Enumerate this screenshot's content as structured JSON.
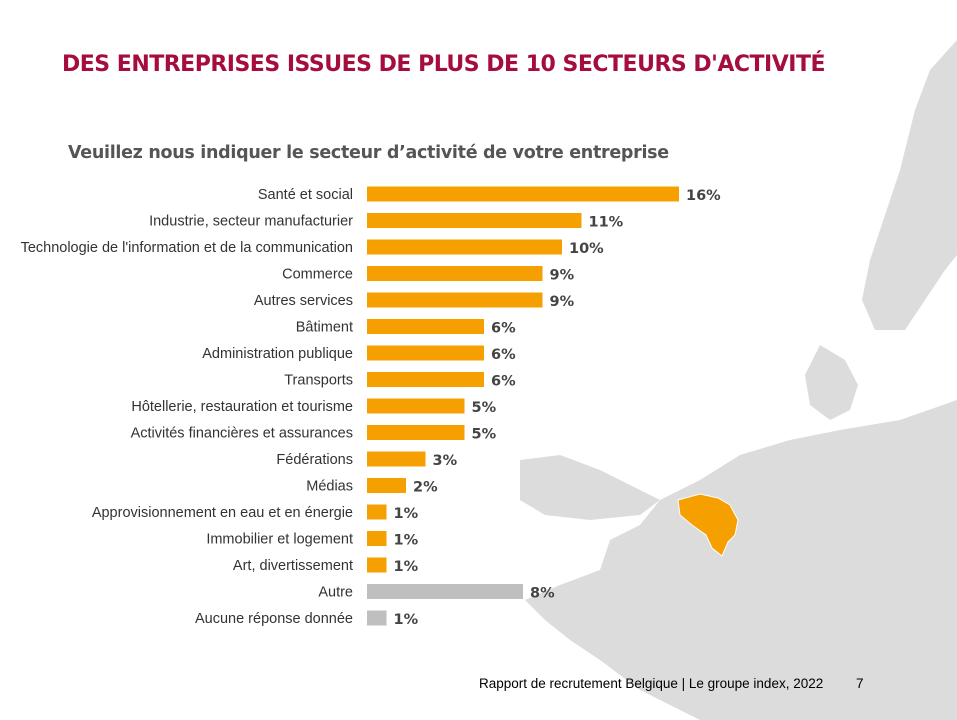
{
  "title": "DES ENTREPRISES ISSUES DE PLUS DE 10 SECTEURS D'ACTIVITÉ",
  "footer": {
    "text": "Rapport de recrutement Belgique | Le groupe index, 2022",
    "page": "7"
  },
  "colors": {
    "title": "#a50d3c",
    "bar_primary": "#f5a000",
    "bar_other": "#bfbfbf",
    "map_land": "#dcdcdc",
    "map_highlight": "#f5a000"
  },
  "chart_data": {
    "type": "bar",
    "orientation": "horizontal",
    "title": "Veuillez nous indiquer le secteur d’activité de votre entreprise",
    "unit": "%",
    "categories": [
      "Santé et social",
      "Industrie, secteur manufacturier",
      "Technologie de l'information et de la communication",
      "Commerce",
      "Autres services",
      "Bâtiment",
      "Administration publique",
      "Transports",
      "Hôtellerie, restauration et tourisme",
      "Activités financières et assurances",
      "Fédérations",
      "Médias",
      "Approvisionnement en eau et en énergie",
      "Immobilier et logement",
      "Art, divertissement",
      "Autre",
      "Aucune réponse donnée"
    ],
    "values": [
      16,
      11,
      10,
      9,
      9,
      6,
      6,
      6,
      5,
      5,
      3,
      2,
      1,
      1,
      1,
      8,
      1
    ],
    "labels": [
      "16%",
      "11%",
      "10%",
      "9%",
      "9%",
      "6%",
      "6%",
      "6%",
      "5%",
      "5%",
      "3%",
      "2%",
      "1%",
      "1%",
      "1%",
      "8%",
      "1%"
    ],
    "bar_colors": [
      "#f5a000",
      "#f5a000",
      "#f5a000",
      "#f5a000",
      "#f5a000",
      "#f5a000",
      "#f5a000",
      "#f5a000",
      "#f5a000",
      "#f5a000",
      "#f5a000",
      "#f5a000",
      "#f5a000",
      "#f5a000",
      "#f5a000",
      "#bfbfbf",
      "#bfbfbf"
    ],
    "grid": false,
    "legend": "none"
  }
}
